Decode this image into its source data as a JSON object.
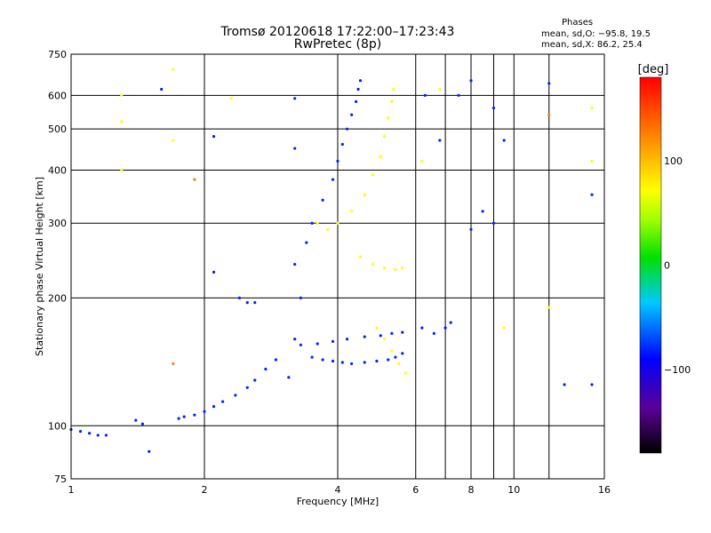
{
  "title_line1": "Tromsø 20120618 17:22:00–17:23:43",
  "title_line2": "RwPretec (8p)",
  "phases": {
    "heading": "Phases",
    "o_line": "mean, sd,O: −95.8, 19.5",
    "x_line": "mean, sd,X:  86.2, 25.4"
  },
  "colorbar": {
    "unit_label": "[deg]",
    "ticks": [
      {
        "value": 100,
        "label": "100"
      },
      {
        "value": 0,
        "label": "0"
      },
      {
        "value": -100,
        "label": "−100"
      }
    ],
    "range": [
      -180,
      180
    ]
  },
  "chart_data": {
    "type": "scatter",
    "xlabel": "Frequency [MHz]",
    "ylabel": "Stationary phase Virtual Height [km]",
    "xscale": "log",
    "yscale": "log",
    "xlim": [
      1,
      16
    ],
    "ylim": [
      75,
      750
    ],
    "xticks": [
      1,
      2,
      4,
      6,
      8,
      10,
      16
    ],
    "xtick_labels": [
      "1",
      "2",
      "4",
      "6",
      "8",
      "10",
      "16"
    ],
    "yticks": [
      75,
      100,
      200,
      300,
      400,
      500,
      600,
      750
    ],
    "ytick_labels": [
      "75",
      "100",
      "200",
      "300",
      "400",
      "500",
      "600",
      "750"
    ],
    "grid": true,
    "color_by": "phase [deg]",
    "series": [
      {
        "points": [
          [
            1.0,
            98,
            -105
          ],
          [
            1.05,
            97,
            -105
          ],
          [
            1.1,
            96,
            -105
          ],
          [
            1.15,
            95,
            -105
          ],
          [
            1.2,
            95,
            -105
          ],
          [
            1.4,
            103,
            -105
          ],
          [
            1.45,
            101,
            -105
          ],
          [
            1.5,
            87,
            -105
          ]
        ]
      },
      {
        "points": [
          [
            1.75,
            104,
            -105
          ],
          [
            1.8,
            105,
            -105
          ],
          [
            1.9,
            106,
            -105
          ],
          [
            2.0,
            108,
            -105
          ],
          [
            2.1,
            111,
            -105
          ],
          [
            2.2,
            114,
            -105
          ],
          [
            2.35,
            118,
            -105
          ],
          [
            2.5,
            123,
            -105
          ],
          [
            2.6,
            128,
            -105
          ],
          [
            2.75,
            136,
            -105
          ],
          [
            2.9,
            143,
            -105
          ]
        ]
      },
      {
        "points": [
          [
            3.1,
            130,
            -105
          ],
          [
            3.2,
            160,
            -105
          ],
          [
            3.3,
            200,
            -105
          ],
          [
            3.2,
            240,
            -105
          ],
          [
            3.4,
            270,
            -105
          ],
          [
            3.5,
            300,
            -105
          ],
          [
            3.7,
            340,
            -105
          ],
          [
            3.9,
            380,
            -105
          ],
          [
            4.0,
            420,
            -105
          ],
          [
            4.1,
            460,
            -105
          ],
          [
            4.2,
            500,
            -105
          ],
          [
            4.3,
            540,
            -105
          ],
          [
            4.4,
            580,
            -105
          ],
          [
            4.45,
            620,
            -105
          ],
          [
            4.5,
            650,
            -105
          ]
        ]
      },
      {
        "points": [
          [
            3.5,
            145,
            -105
          ],
          [
            3.7,
            143,
            -105
          ],
          [
            3.9,
            142,
            -105
          ],
          [
            4.1,
            141,
            -105
          ],
          [
            4.3,
            140,
            -105
          ],
          [
            4.6,
            141,
            -105
          ],
          [
            4.9,
            142,
            -105
          ],
          [
            5.2,
            143,
            -105
          ],
          [
            5.4,
            145,
            -105
          ],
          [
            5.6,
            148,
            -105
          ]
        ]
      },
      {
        "points": [
          [
            3.3,
            155,
            -105
          ],
          [
            3.6,
            156,
            -105
          ],
          [
            3.9,
            158,
            -105
          ],
          [
            4.2,
            160,
            -105
          ],
          [
            4.6,
            162,
            -105
          ],
          [
            5.0,
            163,
            -105
          ],
          [
            5.3,
            165,
            -105
          ],
          [
            5.6,
            166,
            -105
          ]
        ]
      },
      {
        "points": [
          [
            3.6,
            300,
            100
          ],
          [
            3.8,
            290,
            100
          ],
          [
            4.0,
            300,
            100
          ],
          [
            4.3,
            320,
            100
          ],
          [
            4.6,
            350,
            100
          ],
          [
            4.8,
            390,
            100
          ],
          [
            5.0,
            430,
            100
          ],
          [
            5.1,
            480,
            100
          ],
          [
            5.2,
            530,
            100
          ],
          [
            5.3,
            580,
            100
          ],
          [
            5.35,
            620,
            100
          ]
        ]
      },
      {
        "points": [
          [
            4.5,
            250,
            100
          ],
          [
            4.8,
            240,
            100
          ],
          [
            5.1,
            235,
            100
          ],
          [
            5.4,
            233,
            100
          ],
          [
            5.6,
            235,
            100
          ]
        ]
      },
      {
        "points": [
          [
            4.9,
            170,
            100
          ],
          [
            5.1,
            160,
            100
          ],
          [
            5.3,
            150,
            100
          ],
          [
            5.5,
            140,
            100
          ],
          [
            5.7,
            133,
            100
          ]
        ]
      },
      {
        "points": [
          [
            6.2,
            170,
            -105
          ],
          [
            6.6,
            165,
            -105
          ],
          [
            7.0,
            170,
            -105
          ],
          [
            7.2,
            175,
            -105
          ]
        ]
      },
      {
        "points": [
          [
            1.3,
            600,
            120
          ],
          [
            1.3,
            520,
            120
          ],
          [
            1.3,
            400,
            120
          ],
          [
            1.7,
            690,
            120
          ],
          [
            1.7,
            470,
            120
          ],
          [
            1.9,
            380,
            150
          ],
          [
            1.7,
            140,
            150
          ],
          [
            2.1,
            480,
            -105
          ],
          [
            2.1,
            230,
            -105
          ],
          [
            1.6,
            620,
            -105
          ],
          [
            12,
            640,
            -105
          ],
          [
            12,
            540,
            150
          ],
          [
            15,
            560,
            120
          ],
          [
            15,
            350,
            -105
          ],
          [
            15,
            125,
            -105
          ],
          [
            13,
            125,
            -105
          ],
          [
            8,
            290,
            -105
          ],
          [
            8.5,
            320,
            -105
          ],
          [
            9,
            300,
            -105
          ],
          [
            9,
            560,
            -105
          ],
          [
            9.5,
            470,
            -105
          ],
          [
            9.5,
            170,
            120
          ],
          [
            12,
            190,
            120
          ],
          [
            15,
            420,
            100
          ],
          [
            2.3,
            590,
            110
          ],
          [
            3.2,
            590,
            -105
          ],
          [
            3.2,
            450,
            -105
          ],
          [
            6.3,
            600,
            -105
          ],
          [
            6.8,
            620,
            110
          ],
          [
            7.5,
            600,
            -105
          ],
          [
            8,
            650,
            -105
          ],
          [
            6.2,
            420,
            110
          ],
          [
            6.8,
            470,
            -105
          ],
          [
            2.4,
            200,
            -105
          ],
          [
            2.5,
            195,
            -105
          ],
          [
            2.6,
            195,
            -105
          ]
        ]
      }
    ]
  }
}
